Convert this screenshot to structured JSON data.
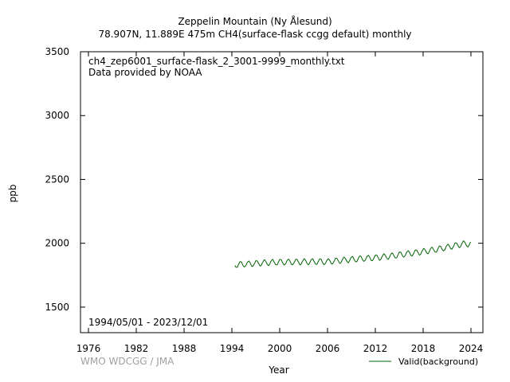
{
  "chart_data": {
    "type": "line",
    "title": "Zeppelin Mountain (Ny Ålesund)",
    "subtitle": "78.907N, 11.889E 475m    CH4(surface-flask ccgg default) monthly",
    "xlabel": "Year",
    "ylabel": "ppb",
    "xlim": [
      1975.0,
      2025.5
    ],
    "ylim": [
      1300,
      3500
    ],
    "xticks": [
      1976,
      1982,
      1988,
      1994,
      2000,
      2006,
      2012,
      2018,
      2024
    ],
    "yticks": [
      1500,
      2000,
      2500,
      3000,
      3500
    ],
    "file_name": "ch4_zep6001_surface-flask_2_3001-9999_monthly.txt",
    "provider": "Data provided by NOAA",
    "period": "1994/05/01 - 2023/12/01",
    "credit": "WMO WDCGG / JMA",
    "legend_position": "bottom-right",
    "series": [
      {
        "name": "Valid(background)",
        "color": "#006400",
        "start_year": 1994,
        "start_month": 5,
        "annual_means": [
          {
            "year": 1994,
            "value": 1830
          },
          {
            "year": 1996,
            "value": 1838
          },
          {
            "year": 1998,
            "value": 1847
          },
          {
            "year": 2000,
            "value": 1852
          },
          {
            "year": 2002,
            "value": 1854
          },
          {
            "year": 2004,
            "value": 1856
          },
          {
            "year": 2006,
            "value": 1856
          },
          {
            "year": 2008,
            "value": 1868
          },
          {
            "year": 2010,
            "value": 1878
          },
          {
            "year": 2012,
            "value": 1887
          },
          {
            "year": 2014,
            "value": 1900
          },
          {
            "year": 2016,
            "value": 1918
          },
          {
            "year": 2018,
            "value": 1935
          },
          {
            "year": 2020,
            "value": 1955
          },
          {
            "year": 2022,
            "value": 1982
          },
          {
            "year": 2023,
            "value": 1995
          }
        ],
        "seasonal_amplitude": 22
      }
    ]
  }
}
